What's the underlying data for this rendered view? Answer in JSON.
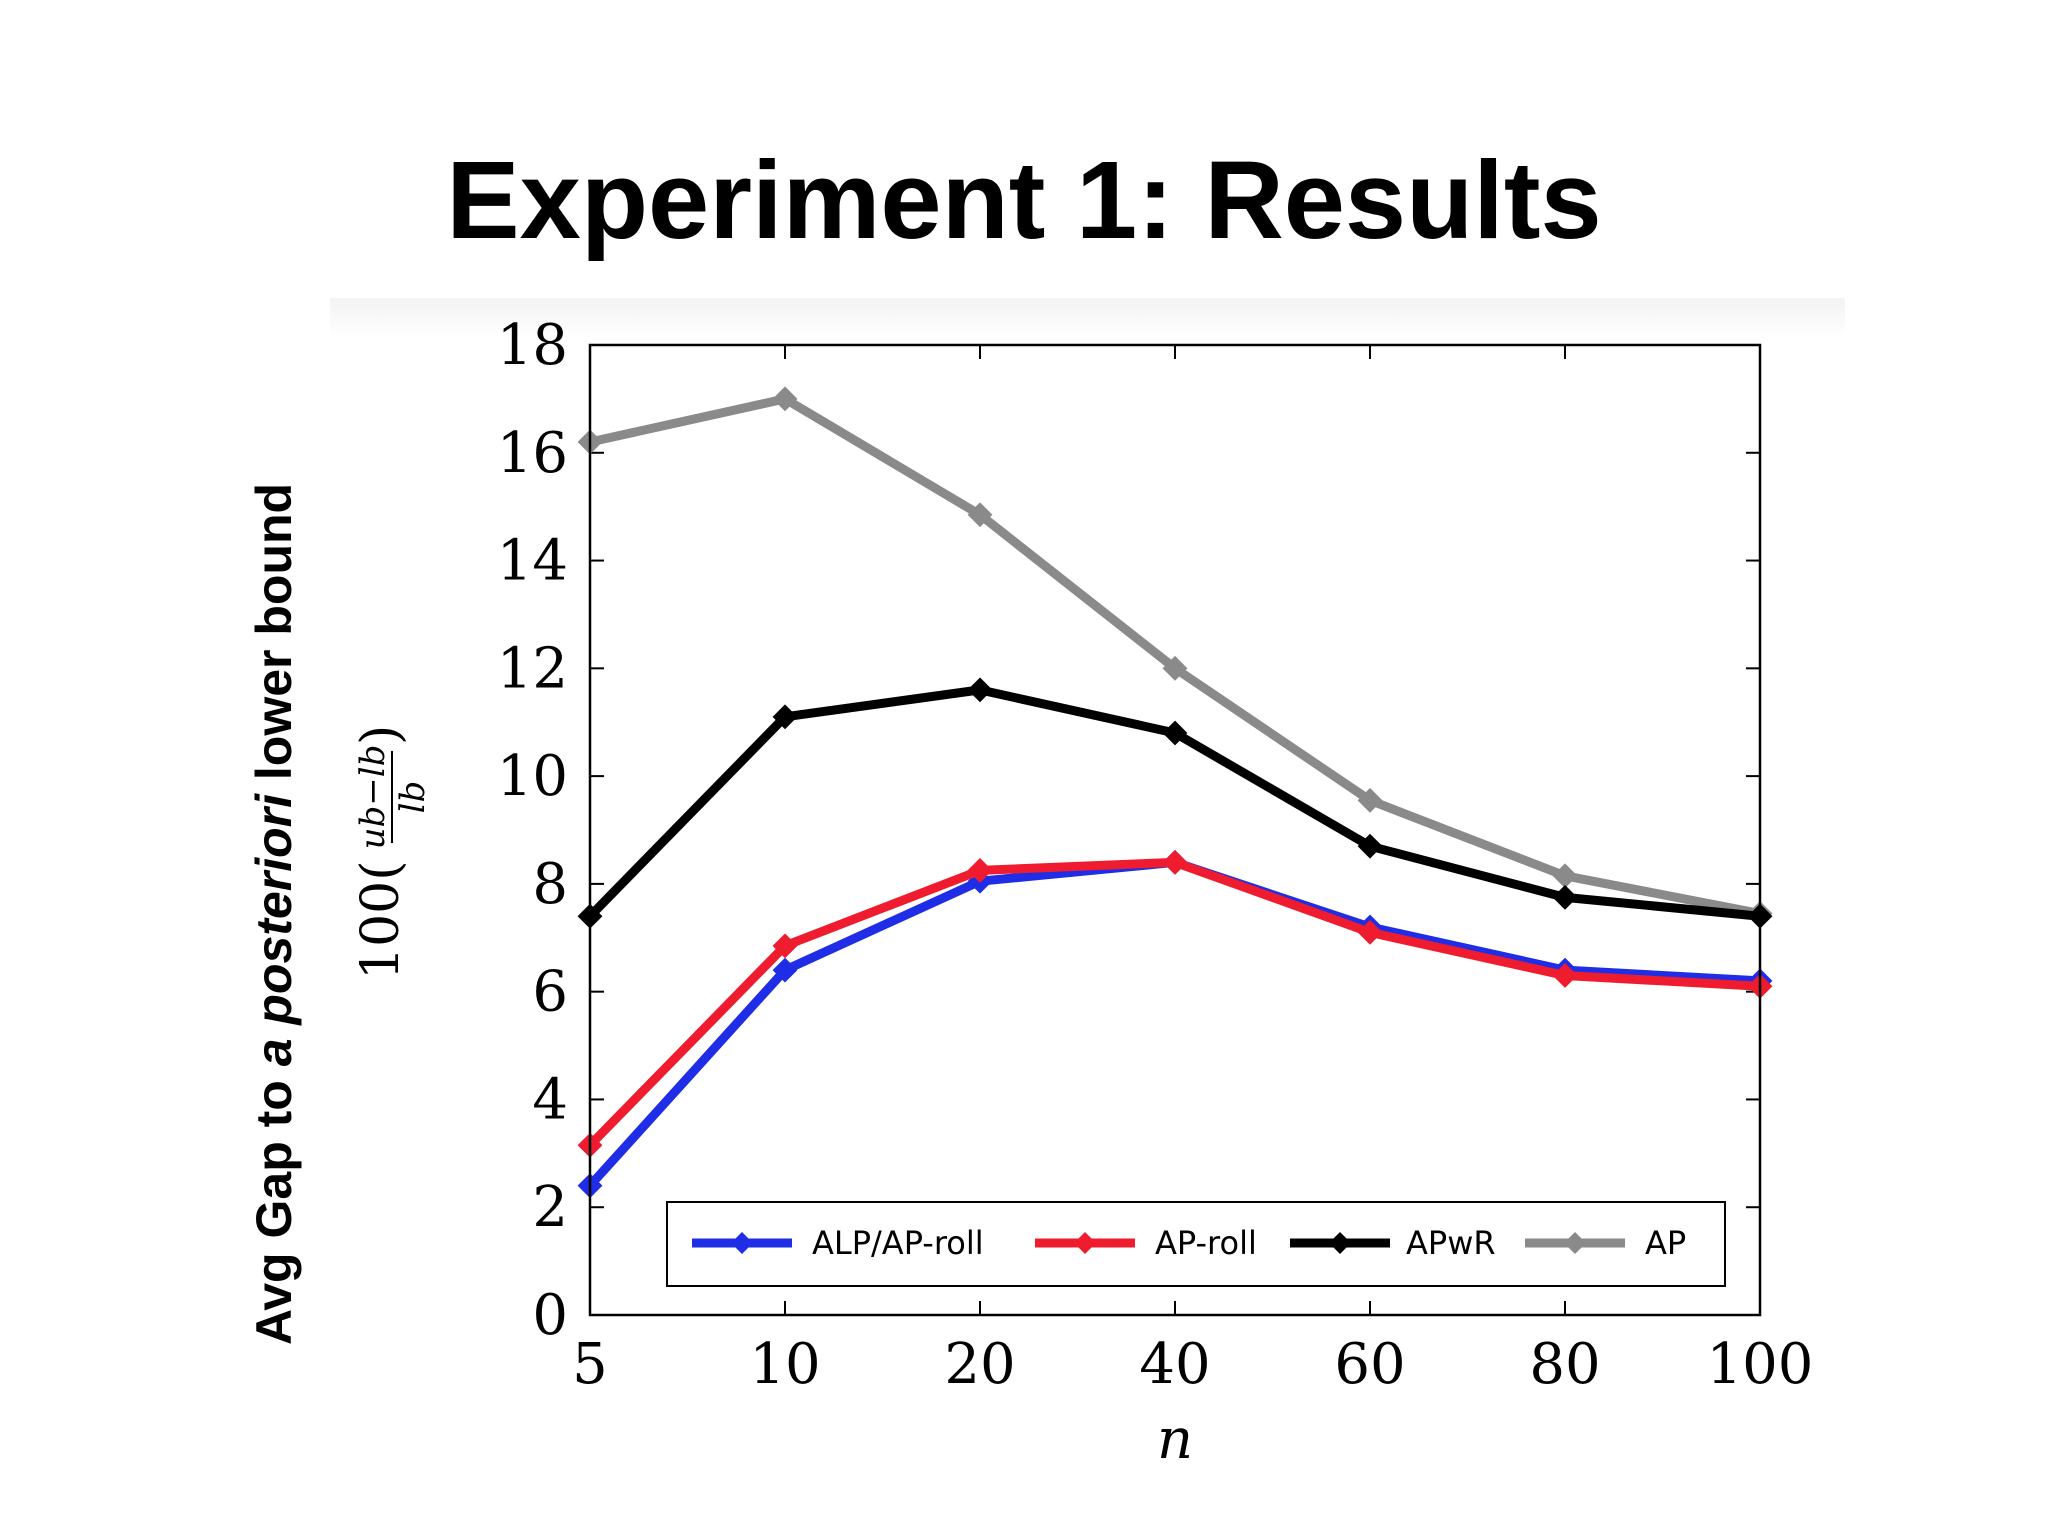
{
  "slide": {
    "title": "Experiment 1: Results",
    "ylabel_parts": [
      "Avg Gap to ",
      "a posteriori",
      " lower bound"
    ]
  },
  "chart_data": {
    "type": "line",
    "categories": [
      "5",
      "10",
      "20",
      "40",
      "60",
      "80",
      "100"
    ],
    "ylim": [
      0,
      18
    ],
    "yticks": [
      0,
      2,
      4,
      6,
      8,
      10,
      12,
      14,
      16,
      18
    ],
    "xlabel": "n",
    "ylabel": "100((ub−lb)/lb)",
    "ylabel_prefix": "100(",
    "ylabel_num": "ub−lb",
    "ylabel_den": "lb",
    "ylabel_suffix": ")",
    "grid": false,
    "legend_position": "bottom-inside",
    "series": [
      {
        "name": "ALP/AP-roll",
        "color": "#1f2ee6",
        "values": [
          2.4,
          6.4,
          8.05,
          8.4,
          7.2,
          6.4,
          6.2
        ]
      },
      {
        "name": "AP-roll",
        "color": "#ee1c2e",
        "values": [
          3.15,
          6.85,
          8.25,
          8.4,
          7.1,
          6.3,
          6.1
        ]
      },
      {
        "name": "APwR",
        "color": "#000000",
        "values": [
          7.4,
          11.1,
          11.6,
          10.8,
          8.7,
          7.75,
          7.4
        ]
      },
      {
        "name": "AP",
        "color": "#8a8a8a",
        "values": [
          16.2,
          17.0,
          14.85,
          12.0,
          9.55,
          8.15,
          7.45
        ]
      }
    ]
  }
}
